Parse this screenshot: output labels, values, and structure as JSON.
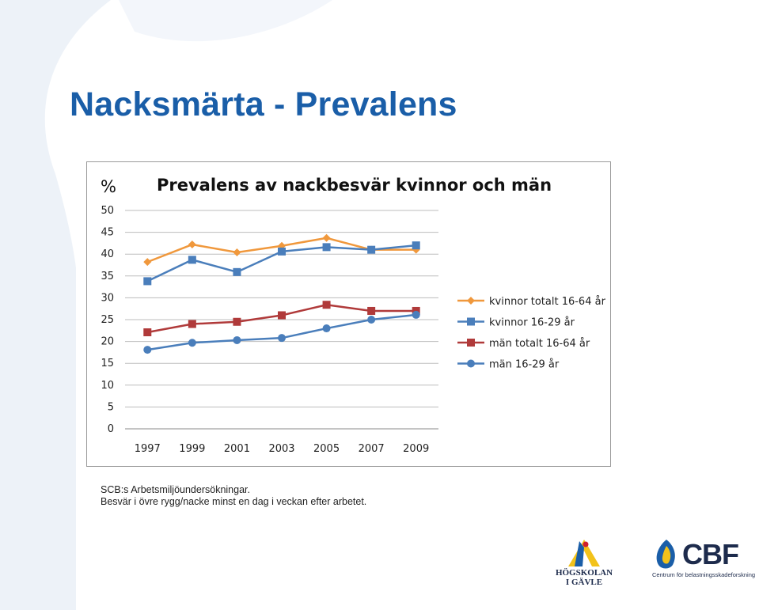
{
  "slide": {
    "title": "Nacksmärta - Prevalens",
    "source_line1": "SCB:s Arbetsmiljöundersökningar.",
    "source_line2": "Besvär i övre rygg/nacke minst en dag i veckan efter arbetet.",
    "logo_hig_line1": "HÖGSKOLAN",
    "logo_hig_line2": "I GÄVLE",
    "logo_cbf_word": "CBF",
    "logo_cbf_sub": "Centrum för belastningsskadeforskning"
  },
  "colors": {
    "title": "#1a5ea8",
    "background_shape": "#edf2f8"
  },
  "chart_data": {
    "type": "line",
    "title": "Prevalens av nackbesvär kvinnor och män",
    "ylabel": "%",
    "xlabel": "",
    "categories": [
      "1997",
      "1999",
      "2001",
      "2003",
      "2005",
      "2007",
      "2009"
    ],
    "ylim": [
      0,
      50
    ],
    "yticks": [
      0,
      5,
      10,
      15,
      20,
      25,
      30,
      35,
      40,
      45,
      50
    ],
    "grid": true,
    "legend_position": "right",
    "series": [
      {
        "name": "kvinnor totalt 16-64 år",
        "marker": "diamond",
        "color": "#f0983c",
        "values": [
          38.2,
          42.2,
          40.4,
          41.9,
          43.7,
          41.0,
          41.0
        ]
      },
      {
        "name": "kvinnor 16-29 år",
        "marker": "square",
        "color": "#4a7ebb",
        "values": [
          33.8,
          38.7,
          35.9,
          40.6,
          41.6,
          41.0,
          42.0
        ]
      },
      {
        "name": "män totalt 16-64 år",
        "marker": "square",
        "color": "#b03a3a",
        "values": [
          22.1,
          24.0,
          24.5,
          26.0,
          28.4,
          27.0,
          27.0
        ]
      },
      {
        "name": "män 16-29 år",
        "marker": "circle",
        "color": "#4a7ebb",
        "values": [
          18.1,
          19.7,
          20.3,
          20.8,
          23.0,
          25.0,
          26.1
        ]
      }
    ]
  }
}
